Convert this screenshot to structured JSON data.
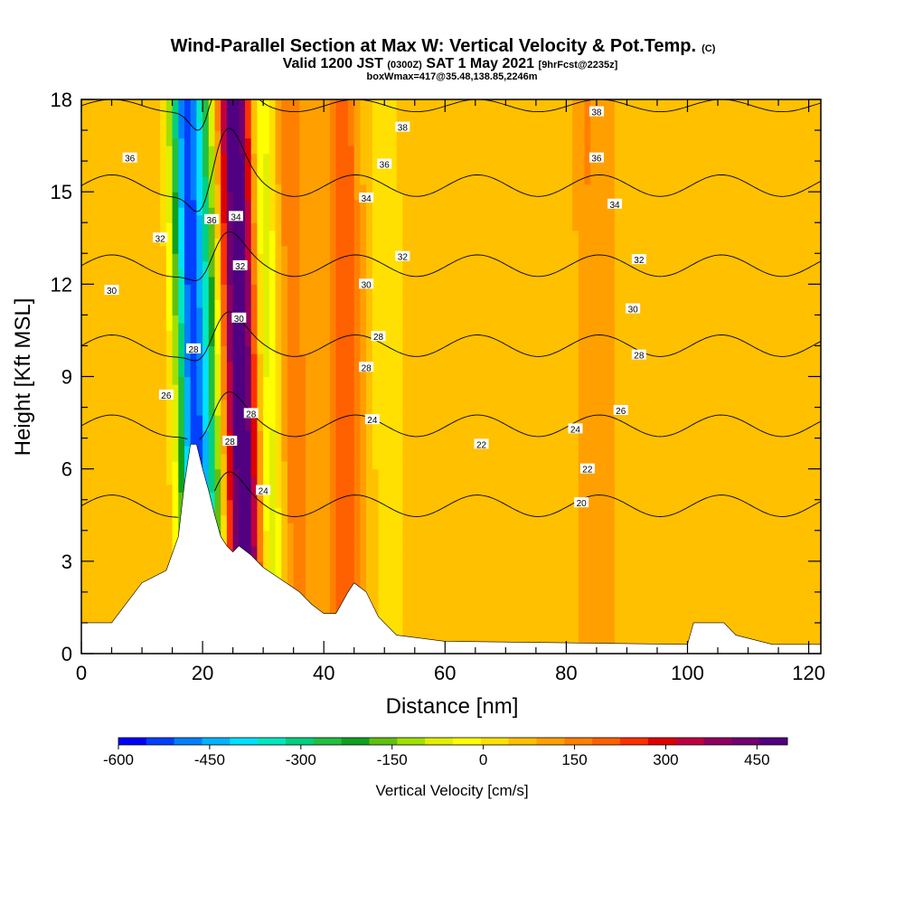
{
  "chart_data": {
    "type": "heatmap",
    "title": "Wind-Parallel Section at Max W: Vertical Velocity & Pot.Temp.",
    "title_mark": "(C)",
    "subtitle_parts": [
      "Valid 1200 JST",
      "(0300Z)",
      "SAT 1 May 2021",
      "[9hrFcst@2235z]"
    ],
    "subtitle2": "boxWmax=417@35.48,138.85,2246m",
    "xlabel": "Distance [nm]",
    "ylabel": "Height [Kft MSL]",
    "xlim": [
      0,
      122
    ],
    "ylim": [
      0,
      18
    ],
    "x_ticks": [
      0,
      20,
      40,
      60,
      80,
      100,
      120
    ],
    "y_ticks": [
      0,
      3,
      6,
      9,
      12,
      15,
      18
    ],
    "colorbar": {
      "label": "Vertical Velocity [cm/s]",
      "range": [
        -600,
        500
      ],
      "ticks": [
        -600,
        -450,
        -300,
        -150,
        0,
        150,
        300,
        450
      ],
      "colors": [
        "#0000ff",
        "#0040ff",
        "#0080ff",
        "#00b4ff",
        "#00e0ff",
        "#00e8c0",
        "#00d080",
        "#20c040",
        "#10a020",
        "#60c010",
        "#a0e000",
        "#e0f000",
        "#ffff00",
        "#ffe000",
        "#ffc000",
        "#ffa000",
        "#ff8000",
        "#ff6000",
        "#ff3000",
        "#e00000",
        "#c00040",
        "#900060",
        "#700070",
        "#500080"
      ]
    },
    "terrain": [
      [
        0,
        1
      ],
      [
        5,
        1
      ],
      [
        10,
        2.3
      ],
      [
        14,
        2.7
      ],
      [
        16,
        3.8
      ],
      [
        17,
        5.5
      ],
      [
        18,
        6.8
      ],
      [
        19,
        6.8
      ],
      [
        20,
        6.0
      ],
      [
        21,
        5.3
      ],
      [
        22,
        4.5
      ],
      [
        23,
        3.8
      ],
      [
        24,
        3.5
      ],
      [
        25,
        3.3
      ],
      [
        26,
        3.5
      ],
      [
        28,
        3.2
      ],
      [
        30,
        2.8
      ],
      [
        33,
        2.4
      ],
      [
        36,
        2.0
      ],
      [
        38,
        1.6
      ],
      [
        40,
        1.3
      ],
      [
        42,
        1.3
      ],
      [
        44,
        2.0
      ],
      [
        45,
        2.3
      ],
      [
        47,
        2.0
      ],
      [
        49,
        1.2
      ],
      [
        52,
        0.6
      ],
      [
        60,
        0.4
      ],
      [
        100,
        0.3
      ],
      [
        101,
        1.0
      ],
      [
        106,
        1.0
      ],
      [
        108,
        0.6
      ],
      [
        114,
        0.3
      ],
      [
        122,
        0.3
      ]
    ],
    "wave_axes": [
      {
        "x_base": 19.5,
        "x_top": 17.2,
        "amplitude": -600,
        "width": 2.6
      },
      {
        "x_base": 22.5,
        "x_top": 20.5,
        "amplitude": -220,
        "width": 2.0
      },
      {
        "x_base": 27.3,
        "x_top": 25.3,
        "amplitude": 450,
        "width": 2.8
      },
      {
        "x_base": 31.5,
        "x_top": 29.5,
        "amplitude": -180,
        "width": 2.2
      },
      {
        "x_base": 36.0,
        "x_top": 34.0,
        "amplitude": 80,
        "width": 2.5
      },
      {
        "x_base": 44.0,
        "x_top": 43.0,
        "amplitude": 140,
        "width": 2.5
      },
      {
        "x_base": 51.0,
        "x_top": 50.0,
        "amplitude": -70,
        "width": 3.0
      },
      {
        "x_base": 81.0,
        "x_top": 80.0,
        "amplitude": -40,
        "width": 2.5
      },
      {
        "x_base": 83.5,
        "x_top": 83.5,
        "amplitude": 60,
        "width": 3.0
      }
    ],
    "background_velocity": 80,
    "contours": [
      {
        "theta": 20,
        "label_at": [
          84,
          5.0
        ]
      },
      {
        "theta": 22,
        "label_at": [
          66,
          6.8
        ]
      },
      {
        "theta": 24,
        "label_at": [
          48,
          7.6
        ]
      },
      {
        "theta": 26,
        "label_at": [
          14,
          8.4
        ]
      },
      {
        "theta": 28,
        "label_at": [
          47,
          9.4
        ]
      },
      {
        "theta": 30,
        "label_at": [
          5,
          11.8
        ]
      },
      {
        "theta": 32,
        "label_at": [
          13,
          13.5
        ]
      },
      {
        "theta": 34,
        "label_at": [
          48,
          14.8
        ]
      },
      {
        "theta": 36,
        "label_at": [
          8,
          16.1
        ]
      },
      {
        "theta": 38,
        "label_at": [
          53,
          17.1
        ]
      }
    ],
    "contour_labels": [
      {
        "text": "36",
        "x": 8,
        "y": 16.1
      },
      {
        "text": "36",
        "x": 21.5,
        "y": 14.1
      },
      {
        "text": "34",
        "x": 25.5,
        "y": 14.2
      },
      {
        "text": "32",
        "x": 13,
        "y": 13.5
      },
      {
        "text": "32",
        "x": 26.2,
        "y": 12.6
      },
      {
        "text": "30",
        "x": 5,
        "y": 11.8
      },
      {
        "text": "30",
        "x": 26.0,
        "y": 10.9
      },
      {
        "text": "28",
        "x": 18.5,
        "y": 9.9
      },
      {
        "text": "28",
        "x": 28.0,
        "y": 7.8
      },
      {
        "text": "28",
        "x": 24.5,
        "y": 6.9
      },
      {
        "text": "26",
        "x": 14,
        "y": 8.4
      },
      {
        "text": "24",
        "x": 30,
        "y": 5.3
      },
      {
        "text": "38",
        "x": 53,
        "y": 17.1
      },
      {
        "text": "36",
        "x": 50,
        "y": 15.9
      },
      {
        "text": "34",
        "x": 47,
        "y": 14.8
      },
      {
        "text": "32",
        "x": 53,
        "y": 12.9
      },
      {
        "text": "30",
        "x": 47,
        "y": 12.0
      },
      {
        "text": "28",
        "x": 49,
        "y": 10.3
      },
      {
        "text": "28",
        "x": 47,
        "y": 9.3
      },
      {
        "text": "24",
        "x": 48,
        "y": 7.6
      },
      {
        "text": "22",
        "x": 66,
        "y": 6.8
      },
      {
        "text": "38",
        "x": 85,
        "y": 17.6
      },
      {
        "text": "36",
        "x": 85,
        "y": 16.1
      },
      {
        "text": "34",
        "x": 88,
        "y": 14.6
      },
      {
        "text": "32",
        "x": 92,
        "y": 12.8
      },
      {
        "text": "30",
        "x": 91,
        "y": 11.2
      },
      {
        "text": "28",
        "x": 92,
        "y": 9.7
      },
      {
        "text": "26",
        "x": 89,
        "y": 7.9
      },
      {
        "text": "24",
        "x": 81.5,
        "y": 7.3
      },
      {
        "text": "22",
        "x": 83.5,
        "y": 6.0
      },
      {
        "text": "20",
        "x": 82.5,
        "y": 4.9
      }
    ]
  }
}
